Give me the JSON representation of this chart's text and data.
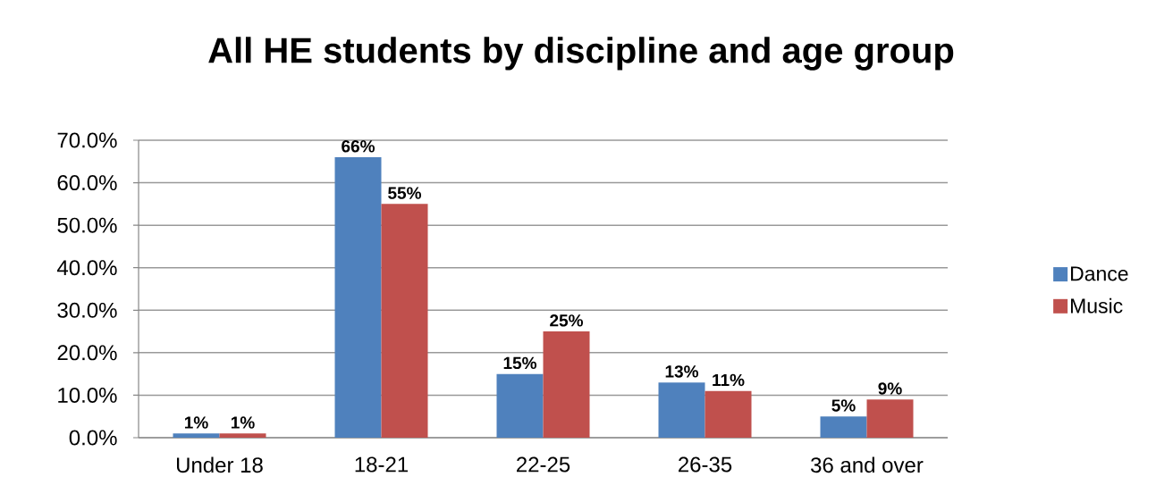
{
  "chart_data": {
    "type": "bar",
    "title": "All HE students by discipline and age group",
    "categories": [
      "Under 18",
      "18-21",
      "22-25",
      "26-35",
      "36 and over"
    ],
    "series": [
      {
        "name": "Dance",
        "color": "#4f81bd",
        "values": [
          1,
          66,
          15,
          13,
          5
        ],
        "value_labels": [
          "1%",
          "66%",
          "15%",
          "13%",
          "5%"
        ]
      },
      {
        "name": "Music",
        "color": "#c0504d",
        "values": [
          1,
          55,
          25,
          11,
          9
        ],
        "value_labels": [
          "1%",
          "55%",
          "25%",
          "11%",
          "9%"
        ]
      }
    ],
    "ylim": [
      0,
      70
    ],
    "yticks": [
      {
        "value": 0,
        "label": "0.0%"
      },
      {
        "value": 10,
        "label": "10.0%"
      },
      {
        "value": 20,
        "label": "20.0%"
      },
      {
        "value": 30,
        "label": "30.0%"
      },
      {
        "value": 40,
        "label": "40.0%"
      },
      {
        "value": 50,
        "label": "50.0%"
      },
      {
        "value": 60,
        "label": "60.0%"
      },
      {
        "value": 70,
        "label": "70.0%"
      }
    ],
    "grid": "y",
    "legend": "right"
  }
}
